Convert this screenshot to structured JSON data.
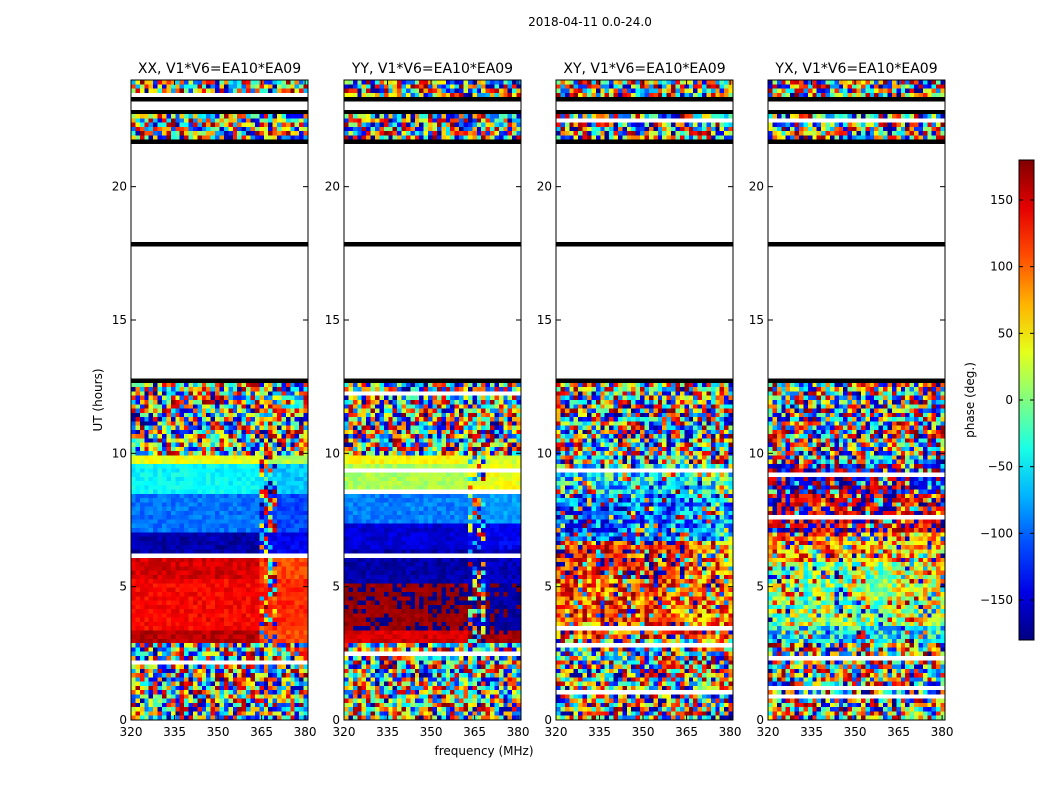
{
  "chart_data": {
    "type": "heatmap",
    "title": "2018-04-11 0.0-24.0",
    "xlabel": "frequency (MHz)",
    "ylabel": "UT (hours)",
    "xlim": [
      320,
      381
    ],
    "ylim": [
      0,
      24
    ],
    "xticks": [
      320,
      335,
      350,
      365,
      380
    ],
    "yticks": [
      0,
      5,
      10,
      15,
      20
    ],
    "panels": [
      {
        "title": "XX, V1*V6=EA10*EA09",
        "pattern": "structured",
        "bands": [
          {
            "t0": 2.9,
            "t1": 3.3,
            "phase_low": 160,
            "phase_high": 110,
            "split_mhz": 364
          },
          {
            "t0": 3.3,
            "t1": 5.2,
            "phase_low": 135,
            "phase_high": 120,
            "split_mhz": 364
          },
          {
            "t0": 5.2,
            "t1": 6.2,
            "phase_low": 150,
            "phase_high": 110,
            "split_mhz": 364
          },
          {
            "t0": 6.2,
            "t1": 7.1,
            "phase_low": -165,
            "phase_high": -140,
            "split_mhz": 364
          },
          {
            "t0": 7.1,
            "t1": 8.4,
            "phase_low": -95,
            "phase_high": -110,
            "split_mhz": 364
          },
          {
            "t0": 8.4,
            "t1": 9.6,
            "phase_low": -45,
            "phase_high": -65,
            "split_mhz": 364
          },
          {
            "t0": 9.6,
            "t1": 10.0,
            "phase_low": 40,
            "phase_high": 20,
            "split_mhz": 364
          }
        ]
      },
      {
        "title": "YY, V1*V6=EA10*EA09",
        "pattern": "structured",
        "bands": [
          {
            "t0": 2.9,
            "t1": 3.4,
            "phase_low": 150,
            "phase_high": 170,
            "split_mhz": 363
          },
          {
            "t0": 3.4,
            "t1": 5.1,
            "phase_low": 175,
            "phase_high": -170,
            "split_mhz": 363
          },
          {
            "t0": 5.1,
            "t1": 6.4,
            "phase_low": -165,
            "phase_high": -160,
            "split_mhz": 363
          },
          {
            "t0": 6.4,
            "t1": 7.3,
            "phase_low": -150,
            "phase_high": -140,
            "split_mhz": 363
          },
          {
            "t0": 7.3,
            "t1": 8.5,
            "phase_low": -90,
            "phase_high": -80,
            "split_mhz": 363
          },
          {
            "t0": 8.5,
            "t1": 9.6,
            "phase_low": 15,
            "phase_high": 40,
            "split_mhz": 363
          },
          {
            "t0": 9.6,
            "t1": 10.0,
            "phase_low": 45,
            "phase_high": 30,
            "split_mhz": 363
          }
        ]
      },
      {
        "title": "XY, V1*V6=EA10*EA09",
        "pattern": "noisy",
        "bands": [
          {
            "t0": 3.0,
            "t1": 5.2,
            "phase_low": 110,
            "phase_high": 90,
            "split_mhz": 364
          },
          {
            "t0": 5.2,
            "t1": 6.8,
            "phase_low": 140,
            "phase_high": 100,
            "split_mhz": 364
          },
          {
            "t0": 6.8,
            "t1": 8.4,
            "phase_low": -100,
            "phase_high": -80,
            "split_mhz": 364
          },
          {
            "t0": 8.4,
            "t1": 9.6,
            "phase_low": -50,
            "phase_high": -30,
            "split_mhz": 364
          }
        ]
      },
      {
        "title": "YX, V1*V6=EA10*EA09",
        "pattern": "noisy",
        "bands": [
          {
            "t0": 2.9,
            "t1": 3.5,
            "phase_low": -55,
            "phase_high": -40,
            "split_mhz": 364
          },
          {
            "t0": 3.5,
            "t1": 6.0,
            "phase_low": 10,
            "phase_high": 40,
            "split_mhz": 364
          },
          {
            "t0": 6.0,
            "t1": 7.0,
            "phase_low": 90,
            "phase_high": 80,
            "split_mhz": 364
          },
          {
            "t0": 7.0,
            "t1": 8.5,
            "phase_low": 160,
            "phase_high": 140,
            "split_mhz": 364
          },
          {
            "t0": 8.5,
            "t1": 9.6,
            "phase_low": -165,
            "phase_high": -150,
            "split_mhz": 364
          }
        ]
      }
    ],
    "flagged_ut_ranges": [
      [
        12.8,
        17.9
      ],
      [
        18.0,
        21.8
      ],
      [
        22.8,
        23.4
      ]
    ],
    "colorbar": {
      "label": "phase (deg.)",
      "range": [
        -180,
        180
      ],
      "ticks": [
        -150,
        -100,
        -50,
        0,
        50,
        100,
        150
      ],
      "colormap": "jet"
    }
  }
}
